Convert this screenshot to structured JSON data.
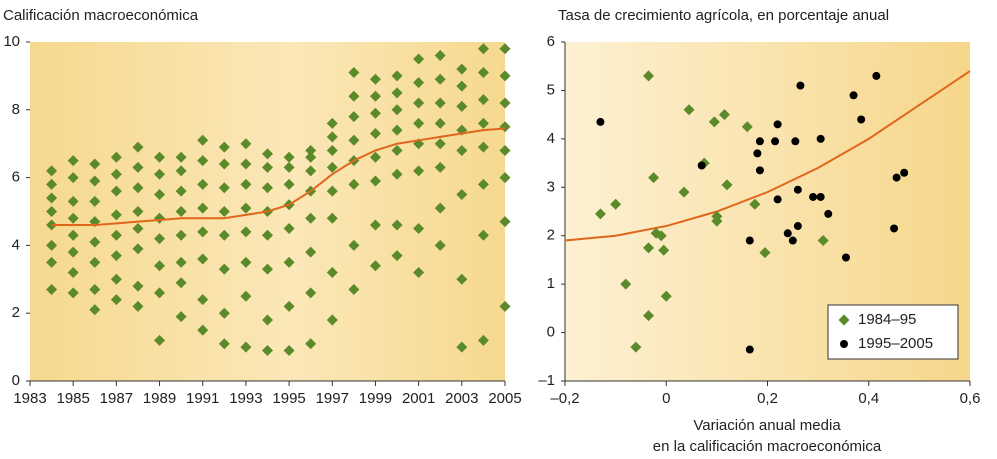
{
  "chart_data": [
    {
      "type": "scatter",
      "title": "Calificación macroeconómica",
      "color": "#5b8a2a",
      "x": [
        1984,
        1985,
        1986,
        1987,
        1988,
        1989,
        1990,
        1991,
        1992,
        1993,
        1994,
        1995,
        1996,
        1997,
        1998,
        1999,
        2000,
        2001,
        2002,
        2003,
        2004,
        2005
      ],
      "values": [
        [
          2.7,
          3.5,
          4.0,
          4.6,
          5.0,
          5.4,
          5.8,
          6.2
        ],
        [
          2.6,
          3.2,
          3.8,
          4.3,
          4.8,
          5.3,
          6.0,
          6.5
        ],
        [
          2.1,
          2.7,
          3.5,
          4.1,
          4.7,
          5.3,
          5.9,
          6.4
        ],
        [
          2.4,
          3.0,
          3.7,
          4.3,
          4.9,
          5.6,
          6.1,
          6.6
        ],
        [
          2.2,
          2.8,
          3.9,
          4.5,
          5.0,
          5.7,
          6.3,
          6.9
        ],
        [
          1.2,
          2.6,
          3.4,
          4.2,
          4.8,
          5.5,
          6.1,
          6.6
        ],
        [
          1.9,
          2.9,
          3.5,
          4.3,
          5.0,
          5.6,
          6.2,
          6.6
        ],
        [
          1.5,
          2.4,
          3.6,
          4.4,
          5.1,
          5.8,
          6.5,
          7.1
        ],
        [
          1.1,
          2.0,
          3.3,
          4.3,
          5.0,
          5.7,
          6.4,
          6.9
        ],
        [
          1.0,
          2.5,
          3.5,
          4.4,
          5.1,
          5.8,
          6.4,
          7.0
        ],
        [
          0.9,
          1.8,
          3.3,
          4.3,
          5.0,
          5.7,
          6.3,
          6.7
        ],
        [
          0.9,
          2.2,
          3.5,
          4.5,
          5.2,
          5.8,
          6.3,
          6.6
        ],
        [
          1.1,
          2.6,
          3.8,
          4.8,
          5.6,
          6.2,
          6.6,
          6.8
        ],
        [
          1.8,
          3.2,
          4.8,
          5.6,
          6.3,
          6.8,
          7.2,
          7.6
        ],
        [
          2.7,
          4.0,
          5.8,
          6.5,
          7.1,
          7.8,
          8.4,
          9.1
        ],
        [
          3.4,
          4.6,
          5.9,
          6.6,
          7.3,
          7.9,
          8.4,
          8.9
        ],
        [
          3.7,
          4.6,
          6.1,
          6.8,
          7.4,
          8.0,
          8.5,
          9.0
        ],
        [
          3.2,
          4.5,
          6.2,
          7.0,
          7.6,
          8.2,
          8.8,
          9.5
        ],
        [
          4.0,
          5.1,
          6.3,
          7.0,
          7.6,
          8.2,
          8.9,
          9.6
        ],
        [
          1.0,
          3.0,
          5.5,
          6.8,
          7.4,
          8.1,
          8.7,
          9.2
        ],
        [
          1.2,
          4.3,
          5.8,
          6.9,
          7.6,
          8.3,
          9.1,
          9.8
        ],
        [
          2.2,
          4.7,
          6.0,
          6.8,
          7.5,
          8.2,
          9.0,
          9.8
        ]
      ],
      "trend": {
        "color": "#e0661c",
        "x": [
          1984,
          1985,
          1986,
          1987,
          1988,
          1989,
          1990,
          1991,
          1992,
          1993,
          1994,
          1995,
          1996,
          1997,
          1998,
          1999,
          2000,
          2001,
          2002,
          2003,
          2004,
          2005
        ],
        "values": [
          4.6,
          4.6,
          4.6,
          4.65,
          4.7,
          4.75,
          4.8,
          4.8,
          4.8,
          4.9,
          5.0,
          5.2,
          5.6,
          6.1,
          6.5,
          6.8,
          7.0,
          7.1,
          7.2,
          7.3,
          7.4,
          7.45
        ]
      },
      "xlim": [
        1983,
        2005
      ],
      "xticks": [
        1983,
        1985,
        1987,
        1989,
        1991,
        1993,
        1995,
        1997,
        1999,
        2001,
        2003,
        2005
      ],
      "ylim": [
        0,
        10
      ],
      "yticks": [
        0,
        2,
        4,
        6,
        8,
        10
      ]
    },
    {
      "type": "scatter",
      "title": "Tasa de crecimiento agrícola, en porcentaje anual",
      "xlabel": [
        "Variación anual media",
        "en la calificación macroeconómica"
      ],
      "series": [
        {
          "name": "1984–95",
          "color": "#5b8a2a",
          "marker": "diamond",
          "x": [
            -0.13,
            -0.1,
            -0.035,
            -0.08,
            -0.035,
            -0.035,
            -0.06,
            -0.025,
            -0.02,
            -0.01,
            -0.005,
            0,
            0.035,
            0.045,
            0.075,
            0.095,
            0.1,
            0.1,
            0.115,
            0.12,
            0.16,
            0.175,
            0.195,
            0.31
          ],
          "values": [
            2.45,
            2.65,
            5.3,
            1.0,
            1.75,
            0.35,
            -0.3,
            3.2,
            2.05,
            2.0,
            1.7,
            0.75,
            2.9,
            4.6,
            3.5,
            4.35,
            2.4,
            2.3,
            4.5,
            3.05,
            4.25,
            2.65,
            1.65,
            1.9
          ]
        },
        {
          "name": "1995–2005",
          "color": "#000000",
          "marker": "circle",
          "x": [
            -0.13,
            0.07,
            0.165,
            0.165,
            0.18,
            0.185,
            0.185,
            0.215,
            0.22,
            0.22,
            0.24,
            0.25,
            0.255,
            0.26,
            0.26,
            0.265,
            0.29,
            0.305,
            0.305,
            0.32,
            0.355,
            0.37,
            0.385,
            0.415,
            0.45,
            0.455,
            0.47
          ],
          "values": [
            4.35,
            3.45,
            -0.35,
            1.9,
            3.7,
            3.95,
            3.35,
            3.95,
            4.3,
            2.75,
            2.05,
            1.9,
            3.95,
            2.2,
            2.95,
            5.1,
            2.8,
            2.8,
            4.0,
            2.45,
            1.55,
            4.9,
            4.4,
            5.3,
            2.15,
            3.2,
            3.3
          ]
        }
      ],
      "trend": {
        "color": "#e0661c",
        "x": [
          -0.2,
          -0.1,
          0,
          0.1,
          0.2,
          0.3,
          0.4,
          0.5,
          0.6
        ],
        "values": [
          1.9,
          2.0,
          2.2,
          2.5,
          2.9,
          3.4,
          4.0,
          4.7,
          5.4
        ]
      },
      "xlim": [
        -0.2,
        0.6
      ],
      "xticks": [
        {
          "value": -0.2,
          "label": "–0,2"
        },
        0,
        {
          "value": 0.2,
          "label": "0,2"
        },
        {
          "value": 0.4,
          "label": "0,4"
        },
        {
          "value": 0.6,
          "label": "0,6"
        }
      ],
      "ylim": [
        -1,
        6
      ],
      "yticks": [
        {
          "value": -1,
          "label": "–1"
        },
        0,
        1,
        2,
        3,
        4,
        5,
        6
      ],
      "legend": "lower right"
    }
  ]
}
